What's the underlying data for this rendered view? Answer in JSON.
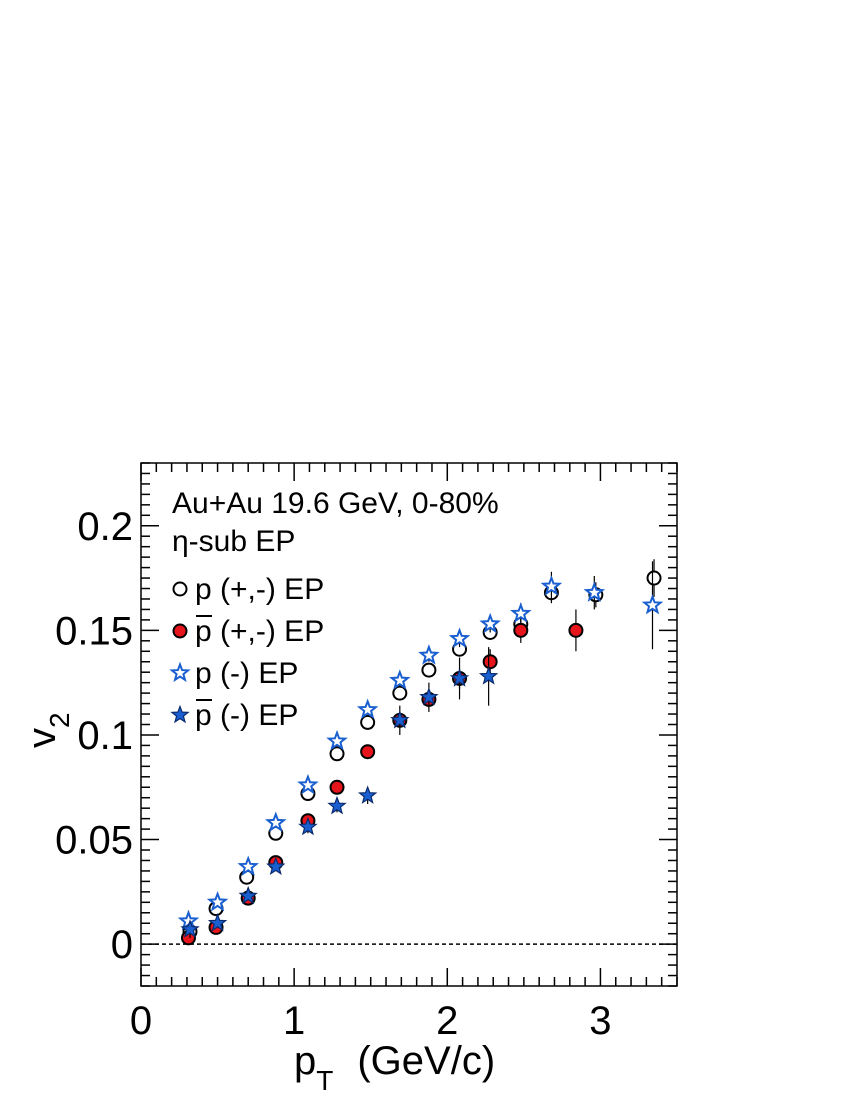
{
  "chart_data": {
    "type": "scatter",
    "annotations": {
      "line1": "Au+Au 19.6 GeV,  0-80%",
      "line2": "η-sub EP"
    },
    "xlabel": {
      "main": "p",
      "sub": "T",
      "rest": "(GeV/c)"
    },
    "ylabel": {
      "main": "v",
      "sub": "2"
    },
    "xlim": [
      0,
      3.5
    ],
    "ylim": [
      -0.02,
      0.23
    ],
    "x_ticks": [
      0,
      1,
      2,
      3
    ],
    "x_tick_labels": [
      "0",
      "1",
      "2",
      "3"
    ],
    "y_ticks": [
      0,
      0.05,
      0.1,
      0.15,
      0.2
    ],
    "y_tick_labels": [
      "0",
      "0.05",
      "0.1",
      "0.15",
      "0.2"
    ],
    "reference_line_y": 0,
    "legend_placement": "top-left",
    "series": [
      {
        "name": "p (+,-) EP",
        "marker": "open-circle",
        "color": "#000000",
        "fill": "#ffffff",
        "x": [
          0.32,
          0.49,
          0.69,
          0.88,
          1.09,
          1.28,
          1.48,
          1.69,
          1.88,
          2.08,
          2.28,
          2.48,
          2.68,
          2.97,
          3.35
        ],
        "y": [
          0.006,
          0.017,
          0.032,
          0.053,
          0.072,
          0.091,
          0.106,
          0.12,
          0.131,
          0.141,
          0.149,
          0.153,
          0.168,
          0.167,
          0.175
        ],
        "err": [
          0.002,
          0.002,
          0.002,
          0.002,
          0.002,
          0.002,
          0.002,
          0.002,
          0.003,
          0.003,
          0.003,
          0.004,
          0.005,
          0.006,
          0.009
        ]
      },
      {
        "name": "p (+,-) EP",
        "name_overline": true,
        "marker": "filled-circle",
        "color": "#000000",
        "fill": "#e8141c",
        "x": [
          0.31,
          0.49,
          0.7,
          0.88,
          1.09,
          1.28,
          1.48,
          1.69,
          1.88,
          2.08,
          2.28,
          2.48,
          2.84
        ],
        "y": [
          0.003,
          0.008,
          0.022,
          0.039,
          0.059,
          0.075,
          0.092,
          0.107,
          0.117,
          0.127,
          0.135,
          0.15,
          0.15
        ],
        "err": [
          0.002,
          0.002,
          0.002,
          0.002,
          0.002,
          0.002,
          0.003,
          0.003,
          0.004,
          0.005,
          0.006,
          0.006,
          0.01
        ]
      },
      {
        "name": "p (-) EP",
        "marker": "open-star",
        "color": "#1a5fd0",
        "fill": "#ffffff",
        "x": [
          0.31,
          0.5,
          0.7,
          0.88,
          1.09,
          1.28,
          1.48,
          1.69,
          1.88,
          2.08,
          2.28,
          2.48,
          2.68,
          2.96,
          3.34
        ],
        "y": [
          0.011,
          0.02,
          0.037,
          0.058,
          0.076,
          0.097,
          0.112,
          0.126,
          0.138,
          0.146,
          0.153,
          0.158,
          0.171,
          0.168,
          0.162
        ],
        "err": [
          0.005,
          0.002,
          0.002,
          0.002,
          0.002,
          0.002,
          0.002,
          0.003,
          0.003,
          0.004,
          0.004,
          0.005,
          0.007,
          0.008,
          0.021
        ]
      },
      {
        "name": "p (-) EP",
        "name_overline": true,
        "marker": "filled-star",
        "color": "#0a2a6e",
        "fill": "#1a5fd0",
        "x": [
          0.32,
          0.5,
          0.7,
          0.88,
          1.09,
          1.28,
          1.48,
          1.69,
          1.88,
          2.08,
          2.27
        ],
        "y": [
          0.007,
          0.01,
          0.023,
          0.037,
          0.056,
          0.066,
          0.071,
          0.107,
          0.118,
          0.127,
          0.128
        ],
        "err": [
          0.004,
          0.002,
          0.002,
          0.002,
          0.003,
          0.003,
          0.004,
          0.007,
          0.007,
          0.01,
          0.014
        ]
      }
    ]
  }
}
